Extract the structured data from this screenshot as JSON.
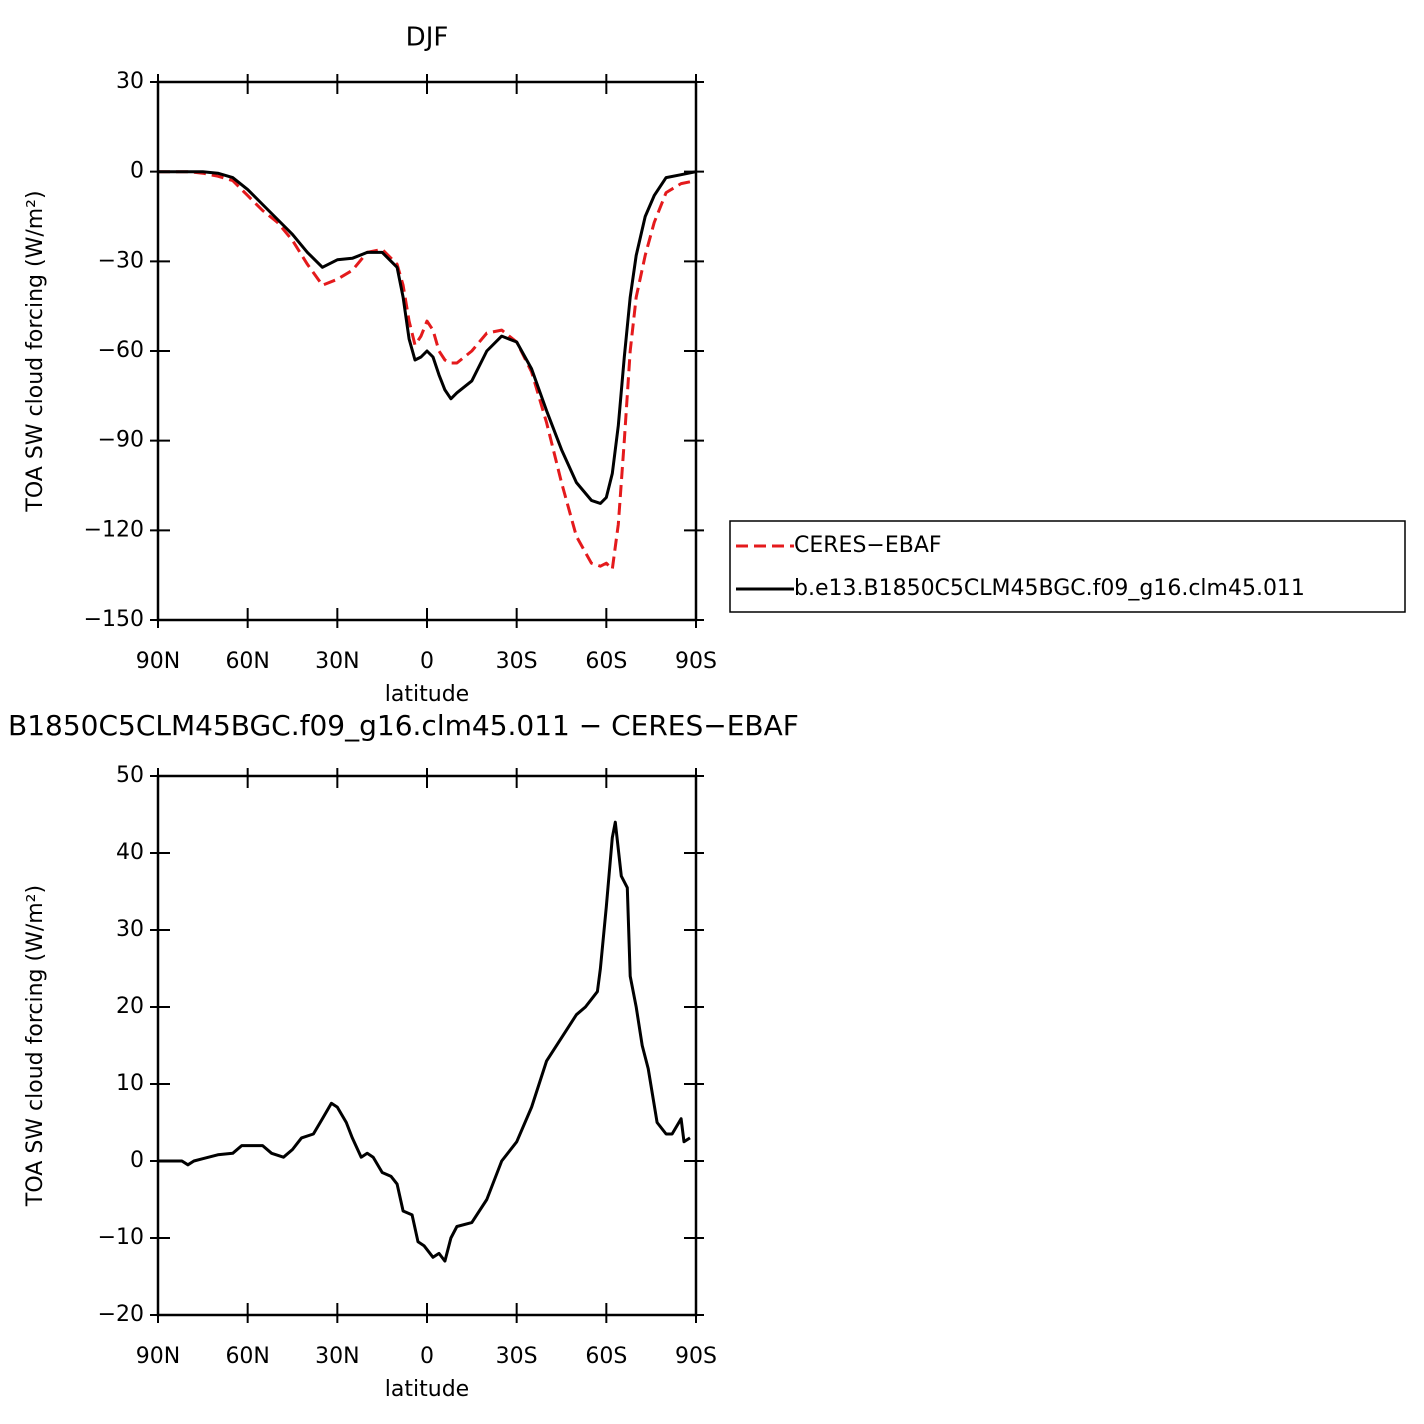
{
  "chart_data": [
    {
      "type": "line",
      "title": "DJF",
      "xlabel": "latitude",
      "ylabel": "TOA SW cloud forcing (W/m²)",
      "x": [
        90,
        85,
        80,
        75,
        70,
        65,
        60,
        55,
        50,
        45,
        40,
        35,
        30,
        25,
        20,
        15,
        10,
        8,
        6,
        4,
        2,
        0,
        -2,
        -4,
        -6,
        -8,
        -10,
        -15,
        -20,
        -25,
        -30,
        -35,
        -40,
        -45,
        -50,
        -55,
        -58,
        -60,
        -62,
        -64,
        -66,
        -68,
        -70,
        -73,
        -76,
        -80,
        -85,
        -90
      ],
      "series": [
        {
          "name": "CERES−EBAF",
          "color": "#e41a1c",
          "dash": true,
          "values": [
            0,
            0,
            0,
            -0.5,
            -1.5,
            -3,
            -8,
            -13,
            -17,
            -23,
            -31,
            -38,
            -36,
            -33,
            -27,
            -26,
            -31,
            -38,
            -50,
            -58,
            -55,
            -50,
            -53,
            -60,
            -63,
            -64,
            -64,
            -60,
            -54,
            -53,
            -57,
            -67,
            -84,
            -104,
            -122,
            -131,
            -132,
            -131,
            -133,
            -118,
            -90,
            -60,
            -42,
            -28,
            -17,
            -7,
            -4,
            -3
          ]
        },
        {
          "name": "b.e13.B1850C5CLM45BGC.f09_g16.clm45.011",
          "color": "#000000",
          "dash": false,
          "values": [
            0,
            0,
            0,
            0,
            -0.5,
            -2,
            -6,
            -11,
            -16,
            -21,
            -27,
            -32,
            -29.5,
            -29,
            -27,
            -27,
            -32,
            -42,
            -56,
            -63,
            -62,
            -60,
            -62,
            -68,
            -73,
            -76,
            -74,
            -70,
            -60,
            -55,
            -57,
            -66,
            -80,
            -93,
            -104,
            -110,
            -111,
            -109,
            -101,
            -85,
            -62,
            -42,
            -28,
            -15,
            -8,
            -2,
            -1,
            0
          ]
        }
      ],
      "xlim": [
        90,
        -90
      ],
      "xticks": [
        {
          "value": 90,
          "label": "90N"
        },
        {
          "value": 60,
          "label": "60N"
        },
        {
          "value": 30,
          "label": "30N"
        },
        0,
        {
          "value": -30,
          "label": "30S"
        },
        {
          "value": -60,
          "label": "60S"
        },
        {
          "value": -90,
          "label": "90S"
        }
      ],
      "ylim": [
        -150,
        30
      ],
      "yticks": [
        {
          "value": 30,
          "label": "30"
        },
        0,
        {
          "value": -30,
          "label": "−30"
        },
        {
          "value": -60,
          "label": "−60"
        },
        {
          "value": -90,
          "label": "−90"
        },
        {
          "value": -120,
          "label": "−120"
        },
        {
          "value": -150,
          "label": "−150"
        }
      ],
      "legend": "right"
    },
    {
      "type": "line",
      "title": "B1850C5CLM45BGC.f09_g16.clm45.011 − CERES−EBAF",
      "xlabel": "latitude",
      "ylabel": "TOA SW cloud forcing (W/m²)",
      "x": [
        90,
        85,
        82,
        80,
        78,
        75,
        70,
        65,
        62,
        58,
        55,
        52,
        48,
        45,
        42,
        38,
        35,
        32,
        30,
        27,
        25,
        22,
        20,
        18,
        15,
        12,
        10,
        8,
        5,
        3,
        1,
        -2,
        -4,
        -6,
        -8,
        -10,
        -15,
        -20,
        -25,
        -30,
        -35,
        -40,
        -45,
        -50,
        -53,
        -55,
        -57,
        -58,
        -60,
        -62,
        -63,
        -65,
        -67,
        -68,
        -70,
        -72,
        -74,
        -77,
        -80,
        -82,
        -85,
        -86,
        -88
      ],
      "series": [
        {
          "color": "#000000",
          "dash": false,
          "values": [
            0,
            0,
            0,
            -0.5,
            0,
            0.3,
            0.8,
            1,
            2,
            2,
            2,
            1,
            0.5,
            1.5,
            3,
            3.5,
            5.5,
            7.5,
            7,
            5,
            3,
            0.5,
            1,
            0.5,
            -1.5,
            -2,
            -3,
            -6.5,
            -7,
            -10.5,
            -11,
            -12.5,
            -12,
            -13,
            -10,
            -8.5,
            -8,
            -5,
            0,
            2.5,
            7,
            13,
            16,
            19,
            20,
            21,
            22,
            25,
            33,
            42,
            44,
            37,
            35.5,
            24,
            20,
            15,
            12,
            5,
            3.5,
            3.5,
            5.5,
            2.5,
            3
          ]
        }
      ],
      "xlim": [
        90,
        -90
      ],
      "xticks": [
        {
          "value": 90,
          "label": "90N"
        },
        {
          "value": 60,
          "label": "60N"
        },
        {
          "value": 30,
          "label": "30N"
        },
        0,
        {
          "value": -30,
          "label": "30S"
        },
        {
          "value": -60,
          "label": "60S"
        },
        {
          "value": -90,
          "label": "90S"
        }
      ],
      "ylim": [
        -20,
        50
      ],
      "yticks": [
        50,
        40,
        30,
        20,
        10,
        0,
        {
          "value": -10,
          "label": "−10"
        },
        {
          "value": -20,
          "label": "−20"
        }
      ]
    }
  ]
}
